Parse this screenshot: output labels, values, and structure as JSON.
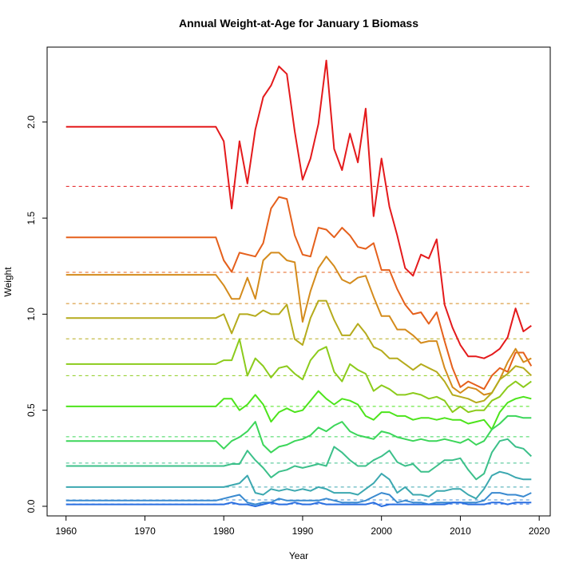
{
  "chart_data": {
    "type": "line",
    "title": "Annual Weight-at-Age for January 1 Biomass",
    "xlabel": "Year",
    "ylabel": "Weight",
    "xlim": [
      1957.6,
      2021.4
    ],
    "ylim": [
      -0.05,
      2.39
    ],
    "xticks": [
      1960,
      1970,
      1980,
      1990,
      2000,
      2010,
      2020
    ],
    "yticks": [
      0.0,
      0.5,
      1.0,
      1.5,
      2.0
    ],
    "ytick_labels": [
      "0.0",
      "0.5",
      "1.0",
      "1.5",
      "2.0"
    ],
    "grid": false,
    "legend": "none",
    "x": [
      1960,
      1961,
      1962,
      1963,
      1964,
      1965,
      1966,
      1967,
      1968,
      1969,
      1970,
      1971,
      1972,
      1973,
      1974,
      1975,
      1976,
      1977,
      1978,
      1979,
      1980,
      1981,
      1982,
      1983,
      1984,
      1985,
      1986,
      1987,
      1988,
      1989,
      1990,
      1991,
      1992,
      1993,
      1994,
      1995,
      1996,
      1997,
      1998,
      1999,
      2000,
      2001,
      2002,
      2003,
      2004,
      2005,
      2006,
      2007,
      2008,
      2009,
      2010,
      2011,
      2012,
      2013,
      2014,
      2015,
      2016,
      2017,
      2018,
      2019
    ],
    "series": [
      {
        "color": "#e41a1c",
        "base": 1.975,
        "mean": 1.665,
        "tail": [
          1.9,
          1.55,
          1.9,
          1.68,
          1.96,
          2.13,
          2.19,
          2.29,
          2.25,
          1.95,
          1.7,
          1.81,
          1.99,
          2.32,
          1.86,
          1.75,
          1.94,
          1.79,
          2.07,
          1.51,
          1.81,
          1.56,
          1.41,
          1.24,
          1.2,
          1.31,
          1.29,
          1.39,
          1.05,
          0.93,
          0.84,
          0.78,
          0.78,
          0.77,
          0.79,
          0.82,
          0.88,
          1.03,
          0.91,
          0.94
        ]
      },
      {
        "color": "#e5601c",
        "base": 1.4,
        "mean": 1.218,
        "tail": [
          1.28,
          1.22,
          1.32,
          1.31,
          1.3,
          1.37,
          1.55,
          1.61,
          1.6,
          1.41,
          1.31,
          1.3,
          1.45,
          1.44,
          1.4,
          1.45,
          1.41,
          1.35,
          1.34,
          1.37,
          1.23,
          1.23,
          1.13,
          1.05,
          1.0,
          1.01,
          0.95,
          1.01,
          0.86,
          0.72,
          0.62,
          0.65,
          0.63,
          0.61,
          0.68,
          0.72,
          0.7,
          0.8,
          0.8,
          0.73
        ]
      },
      {
        "color": "#d48b1c",
        "base": 1.205,
        "mean": 1.055,
        "tail": [
          1.15,
          1.08,
          1.08,
          1.19,
          1.08,
          1.28,
          1.32,
          1.32,
          1.28,
          1.27,
          0.96,
          1.12,
          1.24,
          1.3,
          1.25,
          1.18,
          1.16,
          1.19,
          1.2,
          1.09,
          0.99,
          0.99,
          0.92,
          0.92,
          0.89,
          0.85,
          0.86,
          0.86,
          0.72,
          0.62,
          0.59,
          0.62,
          0.61,
          0.58,
          0.59,
          0.66,
          0.75,
          0.82,
          0.75,
          0.77
        ]
      },
      {
        "color": "#b5ab1c",
        "base": 0.98,
        "mean": 0.872,
        "tail": [
          1.0,
          0.9,
          1.0,
          1.0,
          0.99,
          1.02,
          1.0,
          1.0,
          1.05,
          0.87,
          0.84,
          0.98,
          1.07,
          1.07,
          0.97,
          0.89,
          0.89,
          0.95,
          0.9,
          0.83,
          0.81,
          0.77,
          0.77,
          0.74,
          0.71,
          0.74,
          0.72,
          0.7,
          0.65,
          0.58,
          0.57,
          0.56,
          0.54,
          0.55,
          0.59,
          0.66,
          0.69,
          0.73,
          0.72,
          0.68
        ]
      },
      {
        "color": "#8ccb1c",
        "base": 0.74,
        "mean": 0.68,
        "tail": [
          0.76,
          0.76,
          0.87,
          0.68,
          0.77,
          0.73,
          0.67,
          0.72,
          0.73,
          0.69,
          0.66,
          0.76,
          0.81,
          0.83,
          0.7,
          0.65,
          0.74,
          0.71,
          0.69,
          0.6,
          0.63,
          0.61,
          0.58,
          0.58,
          0.59,
          0.58,
          0.56,
          0.57,
          0.55,
          0.49,
          0.52,
          0.49,
          0.5,
          0.5,
          0.55,
          0.57,
          0.62,
          0.65,
          0.62,
          0.65
        ]
      },
      {
        "color": "#4de41c",
        "base": 0.52,
        "mean": 0.52,
        "tail": [
          0.56,
          0.56,
          0.5,
          0.53,
          0.58,
          0.53,
          0.44,
          0.49,
          0.51,
          0.49,
          0.5,
          0.55,
          0.6,
          0.56,
          0.53,
          0.56,
          0.55,
          0.53,
          0.47,
          0.45,
          0.49,
          0.49,
          0.47,
          0.47,
          0.45,
          0.46,
          0.46,
          0.45,
          0.46,
          0.45,
          0.45,
          0.43,
          0.44,
          0.45,
          0.4,
          0.49,
          0.54,
          0.56,
          0.57,
          0.56
        ]
      },
      {
        "color": "#3cd65a",
        "base": 0.34,
        "mean": 0.362,
        "tail": [
          0.3,
          0.34,
          0.36,
          0.39,
          0.44,
          0.32,
          0.28,
          0.31,
          0.32,
          0.34,
          0.35,
          0.37,
          0.41,
          0.39,
          0.42,
          0.44,
          0.39,
          0.37,
          0.36,
          0.35,
          0.39,
          0.38,
          0.36,
          0.35,
          0.34,
          0.35,
          0.34,
          0.34,
          0.35,
          0.34,
          0.33,
          0.35,
          0.32,
          0.34,
          0.4,
          0.43,
          0.47,
          0.47,
          0.46,
          0.46
        ]
      },
      {
        "color": "#3cc08a",
        "base": 0.21,
        "mean": 0.225,
        "tail": [
          0.21,
          0.22,
          0.22,
          0.29,
          0.24,
          0.2,
          0.15,
          0.18,
          0.19,
          0.21,
          0.2,
          0.21,
          0.22,
          0.21,
          0.31,
          0.28,
          0.24,
          0.21,
          0.21,
          0.24,
          0.26,
          0.29,
          0.23,
          0.21,
          0.22,
          0.18,
          0.18,
          0.21,
          0.24,
          0.24,
          0.25,
          0.19,
          0.14,
          0.17,
          0.28,
          0.34,
          0.35,
          0.31,
          0.3,
          0.26
        ]
      },
      {
        "color": "#3ca8b0",
        "base": 0.1,
        "mean": 0.1,
        "tail": [
          0.1,
          0.11,
          0.12,
          0.16,
          0.07,
          0.06,
          0.09,
          0.08,
          0.09,
          0.08,
          0.09,
          0.08,
          0.1,
          0.09,
          0.07,
          0.07,
          0.07,
          0.06,
          0.09,
          0.12,
          0.17,
          0.14,
          0.07,
          0.1,
          0.06,
          0.06,
          0.05,
          0.08,
          0.08,
          0.09,
          0.09,
          0.06,
          0.04,
          0.09,
          0.16,
          0.18,
          0.17,
          0.15,
          0.14,
          0.14
        ]
      },
      {
        "color": "#3a8ad0",
        "base": 0.03,
        "mean": 0.033,
        "tail": [
          0.04,
          0.05,
          0.06,
          0.02,
          0.01,
          0.02,
          0.02,
          0.04,
          0.03,
          0.03,
          0.03,
          0.03,
          0.03,
          0.04,
          0.03,
          0.02,
          0.02,
          0.02,
          0.03,
          0.05,
          0.07,
          0.06,
          0.02,
          0.03,
          0.02,
          0.02,
          0.01,
          0.02,
          0.02,
          0.02,
          0.02,
          0.02,
          0.02,
          0.03,
          0.07,
          0.07,
          0.06,
          0.06,
          0.05,
          0.07
        ]
      },
      {
        "color": "#2a6fe0",
        "base": 0.01,
        "mean": 0.012,
        "tail": [
          0.01,
          0.02,
          0.01,
          0.01,
          0.0,
          0.01,
          0.02,
          0.01,
          0.01,
          0.02,
          0.01,
          0.01,
          0.02,
          0.01,
          0.01,
          0.01,
          0.01,
          0.01,
          0.01,
          0.02,
          0.0,
          0.01,
          0.01,
          0.01,
          0.01,
          0.01,
          0.01,
          0.01,
          0.01,
          0.02,
          0.02,
          0.01,
          0.01,
          0.01,
          0.02,
          0.02,
          0.01,
          0.02,
          0.02,
          0.02
        ]
      }
    ]
  }
}
